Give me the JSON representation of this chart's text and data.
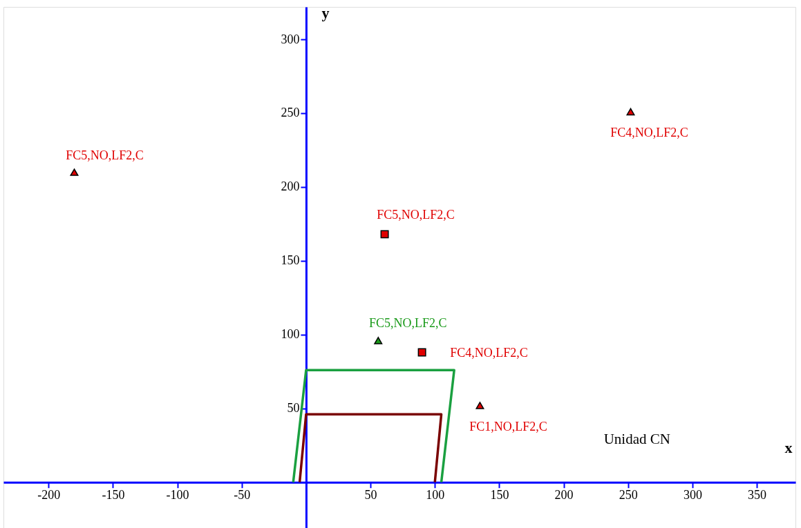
{
  "chart_data": {
    "type": "scatter",
    "xlabel": "x",
    "ylabel": "y",
    "xlim": [
      -235,
      380
    ],
    "ylim": [
      -31,
      322
    ],
    "xticks": [
      -200,
      -150,
      -100,
      -50,
      50,
      100,
      150,
      200,
      250,
      300,
      350
    ],
    "yticks": [
      50,
      100,
      150,
      200,
      250,
      300
    ],
    "grid": false,
    "annotations": [
      "Unidad CN"
    ],
    "series": [
      {
        "type": "line",
        "marker": "none",
        "line_style": "solid",
        "color": "#1aa040",
        "x": [
          -10,
          0,
          115,
          105
        ],
        "values": [
          0,
          76,
          76,
          0
        ]
      },
      {
        "type": "line",
        "marker": "none",
        "line_style": "solid",
        "color": "#7a0000",
        "x": [
          -5,
          0,
          105,
          100
        ],
        "values": [
          0,
          46,
          46,
          0
        ]
      },
      {
        "marker": "triangle",
        "name": "FC5,NO,LF2,C",
        "color": "#e00000",
        "x": [
          -180
        ],
        "values": [
          210
        ]
      },
      {
        "marker": "triangle",
        "name": "FC4,NO,LF2,C",
        "color": "#e00000",
        "x": [
          252
        ],
        "values": [
          251
        ]
      },
      {
        "marker": "square",
        "name": "FC5,NO,LF2,C",
        "color": "#e00000",
        "x": [
          61
        ],
        "values": [
          168
        ]
      },
      {
        "marker": "triangle",
        "name": "FC5,NO,LF2,C",
        "color": "#1a9a1a",
        "x": [
          56
        ],
        "values": [
          96
        ]
      },
      {
        "marker": "square",
        "name": "FC4,NO,LF2,C",
        "color": "#e00000",
        "x": [
          90
        ],
        "values": [
          88
        ]
      },
      {
        "marker": "triangle",
        "name": "FC1,NO,LF2,C",
        "color": "#e00000",
        "x": [
          135
        ],
        "values": [
          52
        ]
      }
    ]
  }
}
